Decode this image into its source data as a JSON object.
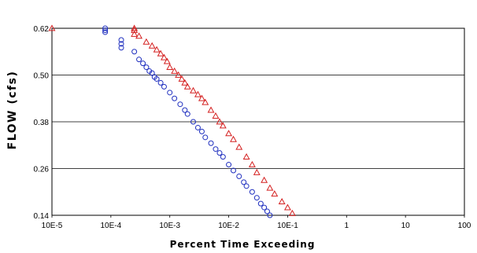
{
  "chart_data": {
    "type": "scatter",
    "title": "",
    "xlabel": "Percent Time Exceeding",
    "ylabel": "FLOW (cfs)",
    "x_scale": "log",
    "xlim": [
      1e-05,
      100
    ],
    "ylim": [
      0.14,
      0.62
    ],
    "x_tick_labels": [
      "10E-5",
      "10E-4",
      "10E-3",
      "10E-2",
      "10E-1",
      "1",
      "10",
      "100"
    ],
    "y_tick_labels": [
      "0.62",
      "0.50",
      "0.38",
      "0.26",
      "0.14"
    ],
    "grid": "horizontal",
    "legend": "none",
    "series": [
      {
        "marker": "circle",
        "color": "#1f2fbf",
        "x": [
          8e-05,
          8e-05,
          8e-05,
          0.00015,
          0.00015,
          0.00015,
          0.00025,
          0.0003,
          0.00035,
          0.0004,
          0.00045,
          0.0005,
          0.00055,
          0.0006,
          0.0007,
          0.0008,
          0.001,
          0.0012,
          0.0015,
          0.0018,
          0.002,
          0.0025,
          0.003,
          0.0035,
          0.004,
          0.005,
          0.006,
          0.007,
          0.008,
          0.01,
          0.012,
          0.015,
          0.018,
          0.02,
          0.025,
          0.03,
          0.035,
          0.04,
          0.045,
          0.05
        ],
        "y": [
          0.62,
          0.615,
          0.61,
          0.59,
          0.58,
          0.57,
          0.56,
          0.54,
          0.53,
          0.52,
          0.51,
          0.505,
          0.495,
          0.49,
          0.48,
          0.47,
          0.455,
          0.44,
          0.425,
          0.41,
          0.4,
          0.38,
          0.365,
          0.355,
          0.34,
          0.325,
          0.31,
          0.3,
          0.29,
          0.27,
          0.255,
          0.24,
          0.225,
          0.215,
          0.2,
          0.185,
          0.17,
          0.16,
          0.15,
          0.14
        ]
      },
      {
        "marker": "triangle",
        "color": "#d42020",
        "x": [
          1e-05,
          0.00025,
          0.00025,
          0.00025,
          0.0003,
          0.0004,
          0.0005,
          0.0006,
          0.0007,
          0.0008,
          0.0009,
          0.001,
          0.0012,
          0.0014,
          0.0016,
          0.0018,
          0.002,
          0.0025,
          0.003,
          0.0035,
          0.004,
          0.005,
          0.006,
          0.007,
          0.008,
          0.01,
          0.012,
          0.015,
          0.02,
          0.025,
          0.03,
          0.04,
          0.05,
          0.06,
          0.08,
          0.1,
          0.12
        ],
        "y": [
          0.62,
          0.62,
          0.615,
          0.605,
          0.6,
          0.585,
          0.575,
          0.565,
          0.555,
          0.545,
          0.535,
          0.52,
          0.51,
          0.5,
          0.49,
          0.48,
          0.47,
          0.46,
          0.45,
          0.44,
          0.43,
          0.41,
          0.395,
          0.38,
          0.37,
          0.35,
          0.335,
          0.315,
          0.29,
          0.27,
          0.25,
          0.23,
          0.21,
          0.195,
          0.175,
          0.16,
          0.145
        ]
      }
    ]
  }
}
